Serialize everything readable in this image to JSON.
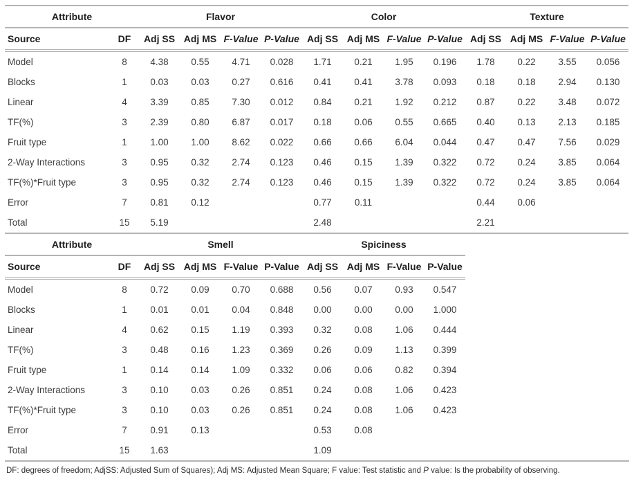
{
  "colors": {
    "rule_gray": "#b4b4b4",
    "text": "#3c3c3c"
  },
  "table1": {
    "groups": [
      {
        "label": "Attribute",
        "span": 2
      },
      {
        "label": "Flavor",
        "span": 4
      },
      {
        "label": "Color",
        "span": 4
      },
      {
        "label": "Texture",
        "span": 4
      }
    ],
    "columns": [
      "Source",
      "DF",
      "Adj SS",
      "Adj MS",
      "F-Value",
      "P-Value",
      "Adj SS",
      "Adj MS",
      "F-Value",
      "P-Value",
      "Adj SS",
      "Adj MS",
      "F-Value",
      "P-Value"
    ],
    "rows": [
      [
        "Model",
        "8",
        "4.38",
        "0.55",
        "4.71",
        "0.028",
        "1.71",
        "0.21",
        "1.95",
        "0.196",
        "1.78",
        "0.22",
        "3.55",
        "0.056"
      ],
      [
        "Blocks",
        "1",
        "0.03",
        "0.03",
        "0.27",
        "0.616",
        "0.41",
        "0.41",
        "3.78",
        "0.093",
        "0.18",
        "0.18",
        "2.94",
        "0.130"
      ],
      [
        "Linear",
        "4",
        "3.39",
        "0.85",
        "7.30",
        "0.012",
        "0.84",
        "0.21",
        "1.92",
        "0.212",
        "0.87",
        "0.22",
        "3.48",
        "0.072"
      ],
      [
        "TF(%)",
        "3",
        "2.39",
        "0.80",
        "6.87",
        "0.017",
        "0.18",
        "0.06",
        "0.55",
        "0.665",
        "0.40",
        "0.13",
        "2.13",
        "0.185"
      ],
      [
        "Fruit type",
        "1",
        "1.00",
        "1.00",
        "8.62",
        "0.022",
        "0.66",
        "0.66",
        "6.04",
        "0.044",
        "0.47",
        "0.47",
        "7.56",
        "0.029"
      ],
      [
        "2-Way Interactions",
        "3",
        "0.95",
        "0.32",
        "2.74",
        "0.123",
        "0.46",
        "0.15",
        "1.39",
        "0.322",
        "0.72",
        "0.24",
        "3.85",
        "0.064"
      ],
      [
        "TF(%)*Fruit type",
        "3",
        "0.95",
        "0.32",
        "2.74",
        "0.123",
        "0.46",
        "0.15",
        "1.39",
        "0.322",
        "0.72",
        "0.24",
        "3.85",
        "0.064"
      ],
      [
        "Error",
        "7",
        "0.81",
        "0.12",
        "",
        "",
        "0.77",
        "0.11",
        "",
        "",
        "0.44",
        "0.06",
        "",
        ""
      ],
      [
        "Total",
        "15",
        "5.19",
        "",
        "",
        "",
        "2.48",
        "",
        "",
        "",
        "2.21",
        "",
        "",
        ""
      ]
    ]
  },
  "table2": {
    "groups": [
      {
        "label": "Attribute",
        "span": 2
      },
      {
        "label": "Smell",
        "span": 4
      },
      {
        "label": "Spiciness",
        "span": 4
      }
    ],
    "columns": [
      "Source",
      "DF",
      "Adj SS",
      "Adj MS",
      "F-Value",
      "P-Value",
      "Adj SS",
      "Adj MS",
      "F-Value",
      "P-Value"
    ],
    "rows": [
      [
        "Model",
        "8",
        "0.72",
        "0.09",
        "0.70",
        "0.688",
        "0.56",
        "0.07",
        "0.93",
        "0.547"
      ],
      [
        "Blocks",
        "1",
        "0.01",
        "0.01",
        "0.04",
        "0.848",
        "0.00",
        "0.00",
        "0.00",
        "1.000"
      ],
      [
        "Linear",
        "4",
        "0.62",
        "0.15",
        "1.19",
        "0.393",
        "0.32",
        "0.08",
        "1.06",
        "0.444"
      ],
      [
        "TF(%)",
        "3",
        "0.48",
        "0.16",
        "1.23",
        "0.369",
        "0.26",
        "0.09",
        "1.13",
        "0.399"
      ],
      [
        "Fruit type",
        "1",
        "0.14",
        "0.14",
        "1.09",
        "0.332",
        "0.06",
        "0.06",
        "0.82",
        "0.394"
      ],
      [
        "2-Way Interactions",
        "3",
        "0.10",
        "0.03",
        "0.26",
        "0.851",
        "0.24",
        "0.08",
        "1.06",
        "0.423"
      ],
      [
        "TF(%)*Fruit type",
        "3",
        "0.10",
        "0.03",
        "0.26",
        "0.851",
        "0.24",
        "0.08",
        "1.06",
        "0.423"
      ],
      [
        "Error",
        "7",
        "0.91",
        "0.13",
        "",
        "",
        "0.53",
        "0.08",
        "",
        ""
      ],
      [
        "Total",
        "15",
        "1.63",
        "",
        "",
        "",
        "1.09",
        "",
        "",
        ""
      ]
    ]
  },
  "footnote": {
    "segments": [
      {
        "text": "DF: degrees of freedom; AdjSS: Adjusted Sum of Squares); Adj MS: Adjusted Mean Square; F value: Test statistic and ",
        "italic": false
      },
      {
        "text": "P",
        "italic": true
      },
      {
        "text": " value: Is the probability of observing.",
        "italic": false
      }
    ]
  }
}
